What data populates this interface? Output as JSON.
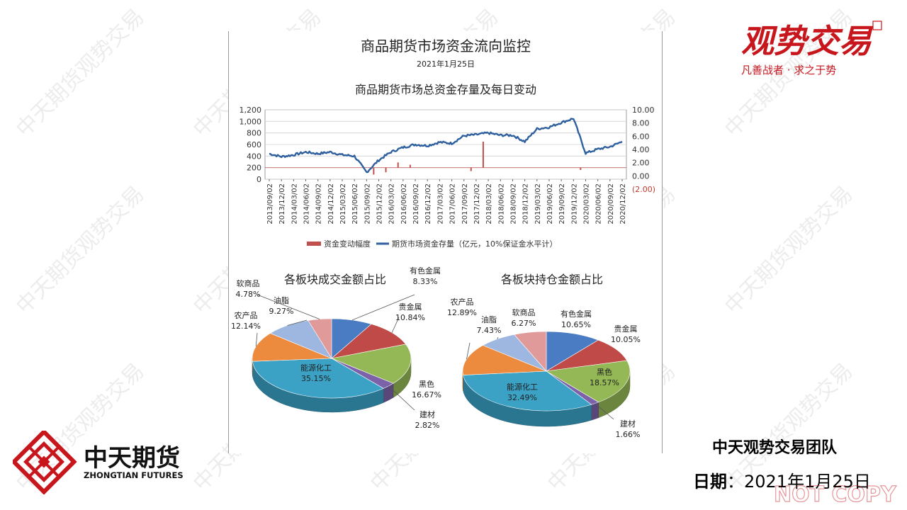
{
  "brand": {
    "logo_text": "观势交易",
    "slogan": "凡善战者 · 求之于势",
    "company_cn": "中天期货",
    "company_en": "ZHONGTIAN FUTURES",
    "watermark": "中天期货观势交易",
    "stamp": "NOT COPY"
  },
  "footer": {
    "team": "中天观势交易团队",
    "date_label": "日期",
    "date_sep": "：",
    "date_value": "2021年1月25日"
  },
  "report": {
    "title": "商品期货市场资金流向监控",
    "date": "2021年1月25日"
  },
  "chart_data": [
    {
      "type": "line",
      "title": "商品期货市场总资金存量及每日变动",
      "series": [
        {
          "name": "期货市场资金存量（亿元，10%保证金水平计）",
          "axis": "left",
          "kind": "line",
          "color": "#2e5f9e",
          "x": [
            "2013/09/02",
            "2013/12/02",
            "2014/03/02",
            "2014/06/02",
            "2014/09/02",
            "2014/12/02",
            "2015/03/02",
            "2015/06/02",
            "2015/09/02",
            "2015/12/02",
            "2016/03/02",
            "2016/06/02",
            "2016/09/02",
            "2016/12/02",
            "2017/03/02",
            "2017/06/02",
            "2017/09/02",
            "2017/12/02",
            "2018/03/02",
            "2018/06/02",
            "2018/09/02",
            "2018/12/02",
            "2019/03/02",
            "2019/06/02",
            "2019/09/02",
            "2019/12/02",
            "2020/03/02",
            "2020/06/02",
            "2020/09/02",
            "2020/12/02"
          ],
          "values": [
            440,
            390,
            420,
            470,
            440,
            470,
            420,
            400,
            120,
            330,
            470,
            550,
            600,
            580,
            640,
            620,
            750,
            770,
            800,
            760,
            760,
            650,
            870,
            900,
            980,
            1050,
            450,
            520,
            560,
            650
          ]
        },
        {
          "name": "资金变动幅度",
          "axis": "right",
          "kind": "bar",
          "color": "#c0504d",
          "x": [
            "2015/09/02",
            "2015/12/02",
            "2016/03/02",
            "2016/06/02",
            "2017/09/02",
            "2017/12/02",
            "2019/12/02"
          ],
          "values": [
            -1.2,
            -0.8,
            0.9,
            0.5,
            -0.6,
            4.5,
            -0.4
          ]
        }
      ],
      "left_ticks": [
        "1,200",
        "1,000",
        "800",
        "600",
        "400",
        "200",
        "0"
      ],
      "right_ticks": [
        "10.00",
        "8.00",
        "6.00",
        "4.00",
        "2.00",
        "0.00",
        "(2.00)"
      ],
      "ylim_left": [
        0,
        1200
      ],
      "ylim_right": [
        -2,
        10
      ],
      "x_tick_labels": [
        "2013/09/02",
        "2013/12/02",
        "2014/03/02",
        "2014/06/02",
        "2014/09/02",
        "2014/12/02",
        "2015/03/02",
        "2015/06/02",
        "2015/09/02",
        "2015/12/02",
        "2016/03/02",
        "2016/06/02",
        "2016/09/02",
        "2016/12/02",
        "2017/03/02",
        "2017/06/02",
        "2017/09/02",
        "2017/12/02",
        "2018/03/02",
        "2018/06/02",
        "2018/09/02",
        "2018/12/02",
        "2019/03/02",
        "2019/06/02",
        "2019/09/02",
        "2019/12/02",
        "2020/03/02",
        "2020/06/02",
        "2020/09/02",
        "2020/12/02"
      ],
      "grid": true,
      "legend_placement": "bottom"
    },
    {
      "type": "pie",
      "title": "各板块成交金额占比",
      "slices": [
        {
          "label": "有色金属",
          "pct": "8.33%",
          "value": 8.33,
          "color": "#4a7cc4"
        },
        {
          "label": "贵金属",
          "pct": "10.84%",
          "value": 10.84,
          "color": "#bf4a47"
        },
        {
          "label": "黑色",
          "pct": "16.67%",
          "value": 16.67,
          "color": "#94b856"
        },
        {
          "label": "建材",
          "pct": "2.82%",
          "value": 2.82,
          "color": "#7c62a8"
        },
        {
          "label": "能源化工",
          "pct": "35.15%",
          "value": 35.15,
          "color": "#3ba2c6"
        },
        {
          "label": "农产品",
          "pct": "12.14%",
          "value": 12.14,
          "color": "#ec8a3e"
        },
        {
          "label": "油脂",
          "pct": "9.27%",
          "value": 9.27,
          "color": "#9db7e0"
        },
        {
          "label": "软商品",
          "pct": "4.78%",
          "value": 4.78,
          "color": "#e19a9a"
        }
      ]
    },
    {
      "type": "pie",
      "title": "各板块持仓金额占比",
      "slices": [
        {
          "label": "有色金属",
          "pct": "10.65%",
          "value": 10.65,
          "color": "#4a7cc4"
        },
        {
          "label": "贵金属",
          "pct": "10.05%",
          "value": 10.05,
          "color": "#bf4a47"
        },
        {
          "label": "黑色",
          "pct": "18.57%",
          "value": 18.57,
          "color": "#94b856"
        },
        {
          "label": "建材",
          "pct": "1.66%",
          "value": 1.66,
          "color": "#7c62a8"
        },
        {
          "label": "能源化工",
          "pct": "32.49%",
          "value": 32.49,
          "color": "#3ba2c6"
        },
        {
          "label": "农产品",
          "pct": "12.89%",
          "value": 12.89,
          "color": "#ec8a3e"
        },
        {
          "label": "油脂",
          "pct": "7.43%",
          "value": 7.43,
          "color": "#9db7e0"
        },
        {
          "label": "软商品",
          "pct": "6.27%",
          "value": 6.27,
          "color": "#e19a9a"
        }
      ]
    }
  ]
}
